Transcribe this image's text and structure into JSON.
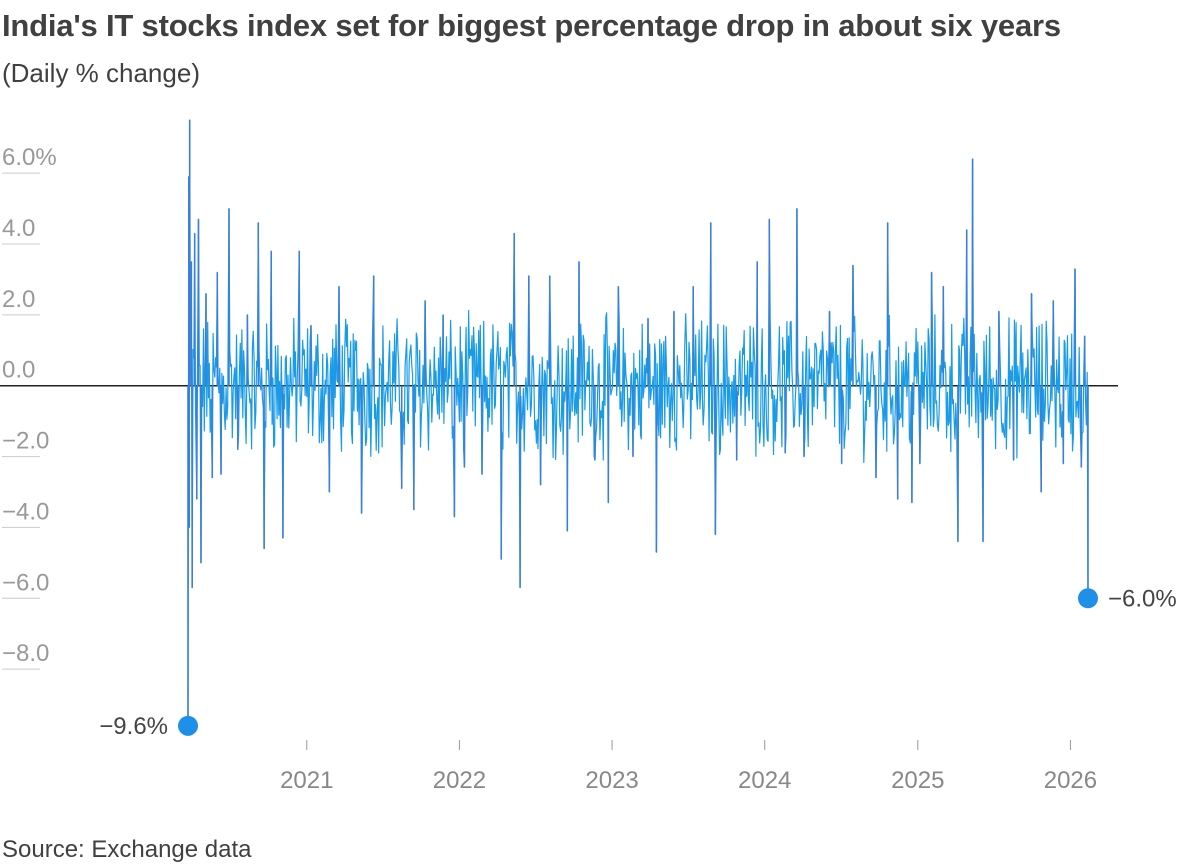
{
  "title": "India's IT stocks index set for biggest percentage drop in about six years",
  "subtitle": "(Daily % change)",
  "source": "Source: Exchange data",
  "colors": {
    "line": "#1a9be6",
    "line_spike": "#3d7fd6",
    "dot": "#1e90e8",
    "zero_line": "#222222",
    "grid": "#cccccc",
    "tick_text": "#999999",
    "axis_text": "#888888",
    "annotation_text": "#444444"
  },
  "chart_data": {
    "type": "line",
    "title": "India's IT stocks index set for biggest percentage drop in about six years",
    "subtitle": "(Daily % change)",
    "xlabel": "",
    "ylabel": "",
    "xlim": [
      "2020-03-23",
      "2026-02-12"
    ],
    "ylim": [
      -10,
      7.5
    ],
    "y_ticks": [
      {
        "value": 6,
        "label": "6.0%"
      },
      {
        "value": 4,
        "label": "4.0"
      },
      {
        "value": 2,
        "label": "2.0"
      },
      {
        "value": 0,
        "label": "0.0"
      },
      {
        "value": -2,
        "label": "−2.0"
      },
      {
        "value": -4,
        "label": "−4.0"
      },
      {
        "value": -6,
        "label": "−6.0"
      },
      {
        "value": -8,
        "label": "−8.0"
      }
    ],
    "x_ticks": [
      {
        "date": "2021-01-01",
        "label": "2021"
      },
      {
        "date": "2022-01-01",
        "label": "2022"
      },
      {
        "date": "2023-01-01",
        "label": "2023"
      },
      {
        "date": "2024-01-01",
        "label": "2024"
      },
      {
        "date": "2025-01-01",
        "label": "2025"
      },
      {
        "date": "2026-01-01",
        "label": "2026"
      }
    ],
    "grid": false,
    "series": [
      {
        "values": [
          [
            "2020-03-23",
            -9.6
          ],
          [
            "2020-03-25",
            5.9
          ],
          [
            "2020-03-26",
            -4.0
          ],
          [
            "2020-03-27",
            7.5
          ],
          [
            "2020-03-31",
            3.5
          ],
          [
            "2020-04-02",
            -5.7
          ],
          [
            "2020-04-08",
            4.3
          ],
          [
            "2020-04-13",
            -3.2
          ],
          [
            "2020-04-17",
            4.7
          ],
          [
            "2020-04-23",
            -5.0
          ],
          [
            "2020-05-05",
            2.6
          ],
          [
            "2020-05-20",
            -2.6
          ],
          [
            "2020-06-01",
            3.2
          ],
          [
            "2020-06-10",
            -2.5
          ],
          [
            "2020-06-29",
            5.0
          ],
          [
            "2020-07-20",
            -1.8
          ],
          [
            "2020-08-12",
            2.0
          ],
          [
            "2020-09-07",
            4.6
          ],
          [
            "2020-09-21",
            -4.6
          ],
          [
            "2020-10-08",
            3.8
          ],
          [
            "2020-11-05",
            -4.3
          ],
          [
            "2020-12-14",
            3.8
          ],
          [
            "2021-01-11",
            1.7
          ],
          [
            "2021-02-24",
            -3.0
          ],
          [
            "2021-03-19",
            2.8
          ],
          [
            "2021-05-12",
            -3.6
          ],
          [
            "2021-06-10",
            3.1
          ],
          [
            "2021-08-16",
            -2.9
          ],
          [
            "2021-09-14",
            -3.5
          ],
          [
            "2021-10-11",
            2.4
          ],
          [
            "2021-11-23",
            2.0
          ],
          [
            "2021-12-20",
            -3.7
          ],
          [
            "2022-01-13",
            -2.3
          ],
          [
            "2022-02-24",
            -2.5
          ],
          [
            "2022-04-11",
            -4.9
          ],
          [
            "2022-05-12",
            4.3
          ],
          [
            "2022-05-26",
            -5.7
          ],
          [
            "2022-06-16",
            3.1
          ],
          [
            "2022-07-14",
            -2.8
          ],
          [
            "2022-08-05",
            3.1
          ],
          [
            "2022-09-16",
            -4.1
          ],
          [
            "2022-10-14",
            3.5
          ],
          [
            "2022-11-21",
            -2.1
          ],
          [
            "2022-12-23",
            -3.3
          ],
          [
            "2023-01-16",
            2.8
          ],
          [
            "2023-02-20",
            -2.0
          ],
          [
            "2023-03-28",
            1.9
          ],
          [
            "2023-04-17",
            -4.7
          ],
          [
            "2023-05-29",
            2.1
          ],
          [
            "2023-07-14",
            2.8
          ],
          [
            "2023-08-25",
            4.6
          ],
          [
            "2023-09-05",
            -4.2
          ],
          [
            "2023-10-26",
            -2.1
          ],
          [
            "2023-12-14",
            3.5
          ],
          [
            "2024-01-12",
            4.7
          ],
          [
            "2024-02-19",
            -1.9
          ],
          [
            "2024-03-18",
            5.0
          ],
          [
            "2024-04-04",
            -2.0
          ],
          [
            "2024-06-04",
            2.1
          ],
          [
            "2024-07-03",
            -2.2
          ],
          [
            "2024-07-30",
            3.4
          ],
          [
            "2024-09-23",
            -2.6
          ],
          [
            "2024-10-21",
            4.6
          ],
          [
            "2024-11-14",
            -3.2
          ],
          [
            "2024-12-18",
            -3.3
          ],
          [
            "2025-01-06",
            -2.2
          ],
          [
            "2025-02-03",
            3.2
          ],
          [
            "2025-03-03",
            2.8
          ],
          [
            "2025-04-07",
            -4.4
          ],
          [
            "2025-04-28",
            4.4
          ],
          [
            "2025-05-12",
            6.4
          ],
          [
            "2025-06-06",
            -4.4
          ],
          [
            "2025-07-14",
            2.1
          ],
          [
            "2025-08-18",
            -2.1
          ],
          [
            "2025-09-30",
            2.6
          ],
          [
            "2025-10-23",
            -3.0
          ],
          [
            "2025-11-21",
            2.4
          ],
          [
            "2025-12-15",
            -2.2
          ],
          [
            "2026-01-12",
            3.3
          ],
          [
            "2026-01-27",
            -2.3
          ],
          [
            "2026-02-04",
            1.4
          ],
          [
            "2026-02-12",
            -6.0
          ]
        ]
      }
    ],
    "annotations": [
      {
        "date": "2020-03-23",
        "value": -9.6,
        "label": "−9.6%",
        "side": "left"
      },
      {
        "date": "2026-02-12",
        "value": -6.0,
        "label": "−6.0%",
        "side": "right"
      }
    ]
  }
}
